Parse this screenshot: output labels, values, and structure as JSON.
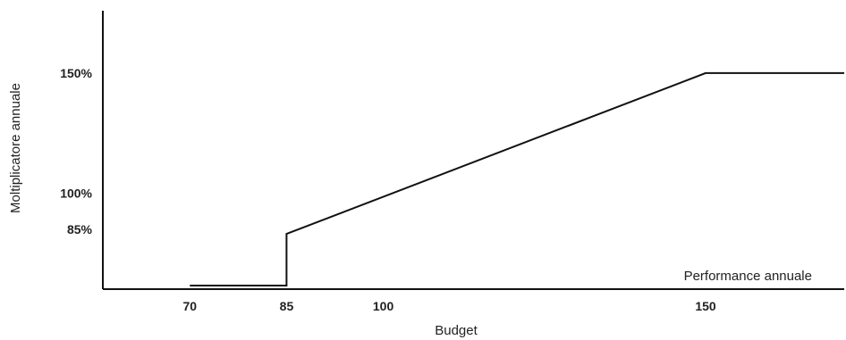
{
  "chart_data": {
    "type": "line",
    "title": "",
    "xlabel": "Budget",
    "ylabel": "Moltiplicatore annuale",
    "annotation": "Performance annuale",
    "x_ticks": [
      {
        "value": 70,
        "label": "70"
      },
      {
        "value": 85,
        "label": "85"
      },
      {
        "value": 100,
        "label": "100"
      },
      {
        "value": 150,
        "label": "150"
      }
    ],
    "y_ticks": [
      {
        "value": 85,
        "label": "85%"
      },
      {
        "value": 100,
        "label": "100%"
      },
      {
        "value": 150,
        "label": "150%"
      }
    ],
    "xlim": [
      56.5,
      171.5
    ],
    "ylim": [
      60,
      176
    ],
    "grid": false,
    "series": [
      {
        "points": [
          {
            "x": 70,
            "y": 61.5
          },
          {
            "x": 85,
            "y": 61.5
          },
          {
            "x": 85,
            "y": 83
          },
          {
            "x": 150,
            "y": 150
          },
          {
            "x": 181,
            "y": 150
          }
        ]
      }
    ]
  }
}
